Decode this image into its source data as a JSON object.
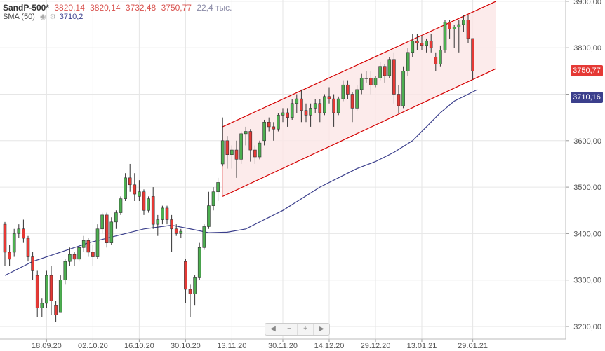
{
  "header": {
    "symbol": "SandP-500*",
    "open": "3820,14",
    "high": "3820,14",
    "low": "3732,48",
    "close": "3750,77",
    "volume": "22,4 тыс.",
    "sma_label": "SMA (50)",
    "sma_value": "3710,2"
  },
  "price_tags": {
    "last": "3750,77",
    "sma": "3710,16"
  },
  "nav": {
    "left": "◀",
    "minus": "−",
    "plus": "+",
    "right": "▶"
  },
  "colors": {
    "up": "#4caf50",
    "down": "#e53935",
    "sma": "#3b3f8c",
    "channel": "#d50000",
    "channel_fill": "#fbe6e6"
  },
  "chart_data": {
    "type": "candlestick",
    "y_axis": {
      "min": 3200,
      "max": 3900,
      "ticks": [
        "3200,00",
        "3300,00",
        "3400,00",
        "3500,00",
        "3600,00",
        "3700,00",
        "3800,00",
        "3900,00"
      ],
      "tick_values": [
        3200,
        3300,
        3400,
        3500,
        3600,
        3700,
        3800,
        3900
      ]
    },
    "x_axis": {
      "labels": [
        "18.09.20",
        "02.10.20",
        "16.10.20",
        "30.10.20",
        "13.11.20",
        "30.11.20",
        "14.12.20",
        "29.12.20",
        "13.01.21",
        "29.01.21"
      ],
      "label_index": [
        9,
        19,
        29,
        39,
        49,
        60,
        70,
        80,
        90,
        101
      ]
    },
    "candles": [
      [
        3420,
        3425,
        3330,
        3360
      ],
      [
        3360,
        3375,
        3330,
        3345
      ],
      [
        3360,
        3410,
        3350,
        3400
      ],
      [
        3400,
        3420,
        3390,
        3410
      ],
      [
        3410,
        3430,
        3380,
        3390
      ],
      [
        3390,
        3395,
        3340,
        3350
      ],
      [
        3350,
        3360,
        3300,
        3320
      ],
      [
        3310,
        3320,
        3220,
        3240
      ],
      [
        3240,
        3260,
        3220,
        3250
      ],
      [
        3250,
        3320,
        3240,
        3310
      ],
      [
        3310,
        3330,
        3225,
        3255
      ],
      [
        3245,
        3255,
        3210,
        3225
      ],
      [
        3230,
        3310,
        3230,
        3300
      ],
      [
        3300,
        3345,
        3290,
        3340
      ],
      [
        3340,
        3370,
        3330,
        3355
      ],
      [
        3355,
        3360,
        3330,
        3345
      ],
      [
        3345,
        3375,
        3340,
        3370
      ],
      [
        3370,
        3395,
        3360,
        3385
      ],
      [
        3385,
        3390,
        3350,
        3360
      ],
      [
        3360,
        3375,
        3330,
        3350
      ],
      [
        3350,
        3420,
        3345,
        3410
      ],
      [
        3410,
        3445,
        3400,
        3440
      ],
      [
        3440,
        3445,
        3370,
        3380
      ],
      [
        3380,
        3435,
        3375,
        3425
      ],
      [
        3425,
        3450,
        3410,
        3445
      ],
      [
        3445,
        3480,
        3440,
        3475
      ],
      [
        3475,
        3530,
        3470,
        3520
      ],
      [
        3520,
        3550,
        3490,
        3505
      ],
      [
        3505,
        3530,
        3470,
        3485
      ],
      [
        3480,
        3515,
        3470,
        3490
      ],
      [
        3490,
        3495,
        3440,
        3450
      ],
      [
        3450,
        3480,
        3445,
        3475
      ],
      [
        3480,
        3500,
        3410,
        3420
      ],
      [
        3420,
        3440,
        3395,
        3430
      ],
      [
        3430,
        3460,
        3420,
        3455
      ],
      [
        3455,
        3460,
        3420,
        3430
      ],
      [
        3430,
        3440,
        3360,
        3410
      ],
      [
        3410,
        3420,
        3395,
        3400
      ],
      [
        3400,
        3410,
        3390,
        3405
      ],
      [
        3340,
        3345,
        3250,
        3280
      ],
      [
        3280,
        3290,
        3220,
        3270
      ],
      [
        3270,
        3310,
        3245,
        3305
      ],
      [
        3305,
        3380,
        3300,
        3370
      ],
      [
        3370,
        3420,
        3365,
        3415
      ],
      [
        3415,
        3490,
        3410,
        3460
      ],
      [
        3460,
        3500,
        3450,
        3490
      ],
      [
        3490,
        3520,
        3470,
        3510
      ],
      [
        3550,
        3650,
        3545,
        3600
      ],
      [
        3600,
        3610,
        3540,
        3570
      ],
      [
        3570,
        3590,
        3540,
        3580
      ],
      [
        3580,
        3600,
        3520,
        3560
      ],
      [
        3560,
        3620,
        3550,
        3615
      ],
      [
        3615,
        3630,
        3590,
        3620
      ],
      [
        3620,
        3625,
        3555,
        3580
      ],
      [
        3580,
        3590,
        3550,
        3565
      ],
      [
        3565,
        3600,
        3560,
        3595
      ],
      [
        3600,
        3645,
        3590,
        3640
      ],
      [
        3640,
        3650,
        3620,
        3630
      ],
      [
        3630,
        3640,
        3600,
        3625
      ],
      [
        3625,
        3660,
        3620,
        3655
      ],
      [
        3655,
        3670,
        3640,
        3660
      ],
      [
        3660,
        3670,
        3630,
        3650
      ],
      [
        3650,
        3690,
        3645,
        3680
      ],
      [
        3680,
        3700,
        3660,
        3690
      ],
      [
        3690,
        3710,
        3640,
        3665
      ],
      [
        3665,
        3680,
        3640,
        3655
      ],
      [
        3655,
        3680,
        3630,
        3670
      ],
      [
        3670,
        3690,
        3660,
        3680
      ],
      [
        3680,
        3690,
        3640,
        3660
      ],
      [
        3660,
        3700,
        3655,
        3695
      ],
      [
        3695,
        3715,
        3680,
        3690
      ],
      [
        3690,
        3700,
        3630,
        3660
      ],
      [
        3660,
        3695,
        3655,
        3690
      ],
      [
        3690,
        3730,
        3685,
        3720
      ],
      [
        3720,
        3730,
        3690,
        3700
      ],
      [
        3700,
        3705,
        3640,
        3670
      ],
      [
        3670,
        3720,
        3665,
        3710
      ],
      [
        3710,
        3745,
        3700,
        3735
      ],
      [
        3735,
        3750,
        3725,
        3735
      ],
      [
        3735,
        3750,
        3700,
        3720
      ],
      [
        3720,
        3740,
        3715,
        3735
      ],
      [
        3735,
        3770,
        3730,
        3760
      ],
      [
        3760,
        3765,
        3725,
        3740
      ],
      [
        3740,
        3780,
        3735,
        3775
      ],
      [
        3775,
        3790,
        3680,
        3700
      ],
      [
        3700,
        3720,
        3660,
        3675
      ],
      [
        3675,
        3760,
        3670,
        3750
      ],
      [
        3750,
        3800,
        3740,
        3790
      ],
      [
        3790,
        3830,
        3780,
        3815
      ],
      [
        3815,
        3830,
        3795,
        3810
      ],
      [
        3810,
        3825,
        3795,
        3805
      ],
      [
        3805,
        3820,
        3790,
        3815
      ],
      [
        3815,
        3830,
        3790,
        3800
      ],
      [
        3780,
        3790,
        3750,
        3765
      ],
      [
        3765,
        3805,
        3760,
        3795
      ],
      [
        3795,
        3860,
        3790,
        3855
      ],
      [
        3855,
        3860,
        3820,
        3840
      ],
      [
        3840,
        3850,
        3800,
        3845
      ],
      [
        3845,
        3860,
        3790,
        3850
      ],
      [
        3850,
        3870,
        3835,
        3860
      ],
      [
        3860,
        3870,
        3810,
        3820
      ],
      [
        3820,
        3820,
        3732,
        3750
      ]
    ],
    "sma": [
      [
        0,
        3310
      ],
      [
        6,
        3340
      ],
      [
        12,
        3360
      ],
      [
        18,
        3380
      ],
      [
        24,
        3395
      ],
      [
        30,
        3410
      ],
      [
        36,
        3418
      ],
      [
        39,
        3412
      ],
      [
        44,
        3402
      ],
      [
        48,
        3403
      ],
      [
        52,
        3410
      ],
      [
        56,
        3430
      ],
      [
        60,
        3450
      ],
      [
        64,
        3475
      ],
      [
        68,
        3500
      ],
      [
        72,
        3520
      ],
      [
        76,
        3540
      ],
      [
        80,
        3555
      ],
      [
        84,
        3575
      ],
      [
        88,
        3600
      ],
      [
        91,
        3630
      ],
      [
        94,
        3660
      ],
      [
        97,
        3685
      ],
      [
        100,
        3700
      ],
      [
        102,
        3710
      ]
    ],
    "channel": {
      "start_index": 47,
      "end_index": 106,
      "upper_start": 3630,
      "upper_end": 3900,
      "lower_start": 3480,
      "lower_end": 3755
    }
  }
}
